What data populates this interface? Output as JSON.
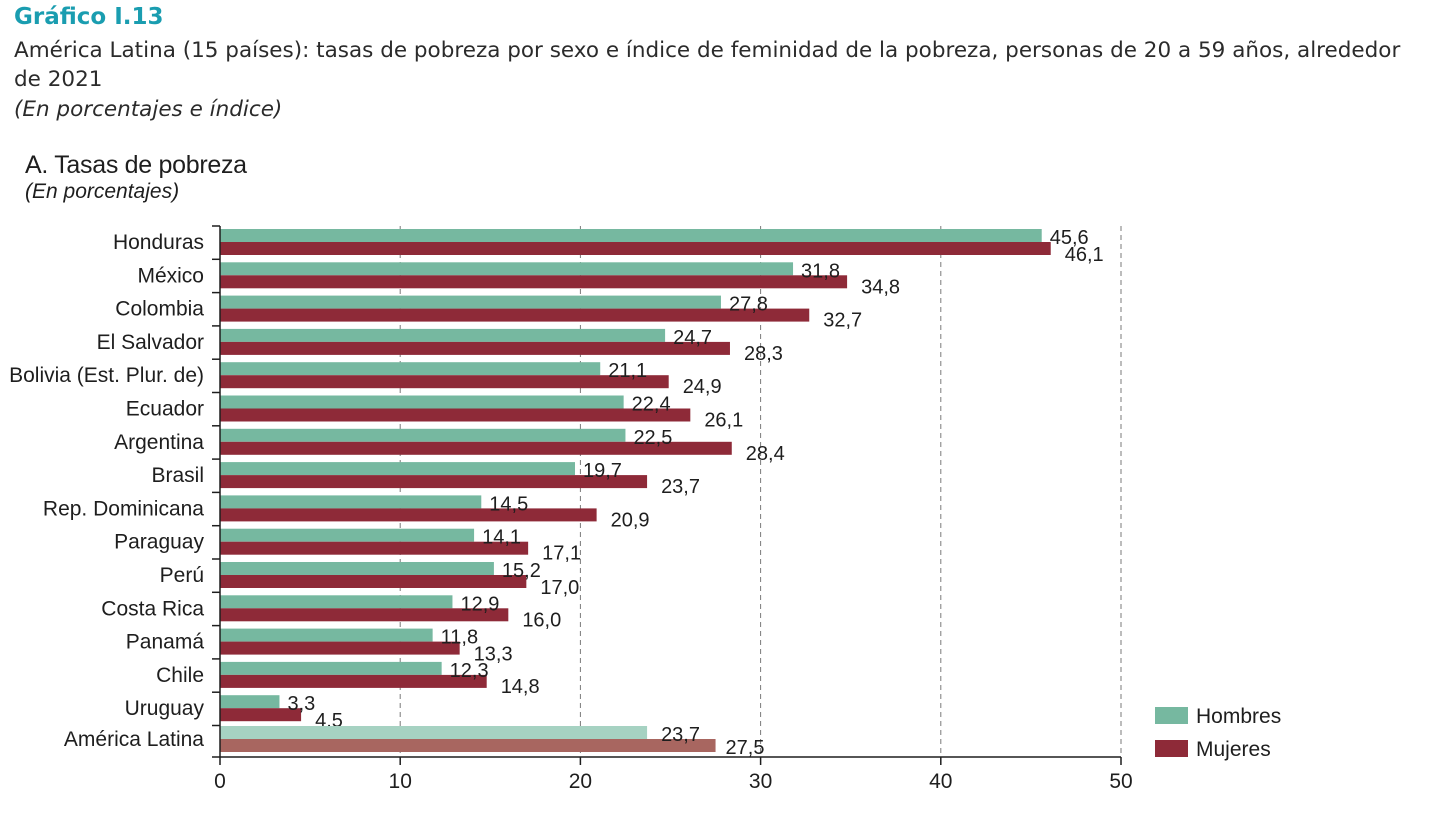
{
  "header": {
    "figure_label": "Gráfico I.13",
    "title": "América Latina (15 países): tasas de pobreza por sexo e índice de feminidad de la pobreza, personas de 20 a 59 años, alrededor de 2021",
    "units": "(En porcentajes e índice)"
  },
  "panel": {
    "title": "A. Tasas  de pobreza",
    "subtitle": "(En porcentajes)"
  },
  "colors": {
    "hombres": "#76b8a0",
    "mujeres": "#8e2a38",
    "hombres_total": "#a6d2c2",
    "mujeres_total": "#a86660",
    "axis": "#1e1e1e",
    "grid": "#7a7a7a"
  },
  "chart_data": {
    "type": "bar",
    "orientation": "horizontal",
    "categories": [
      "Honduras",
      "México",
      "Colombia",
      "El Salvador",
      "Bolivia  (Est. Plur. de)",
      "Ecuador",
      "Argentina",
      "Brasil",
      "Rep. Dominicana",
      "Paraguay",
      "Perú",
      "Costa Rica",
      "Panamá",
      "Chile",
      "Uruguay",
      "América Latina"
    ],
    "series": [
      {
        "name": "Hombres",
        "values": [
          45.6,
          31.8,
          27.8,
          24.7,
          21.1,
          22.4,
          22.5,
          19.7,
          14.5,
          14.1,
          15.2,
          12.9,
          11.8,
          12.3,
          3.3,
          23.7
        ],
        "labels": [
          "45,6",
          "31,8",
          "27,8",
          "24,7",
          "21,1",
          "22,4",
          "22,5",
          "19,7",
          "14,5",
          "14,1",
          "15,2",
          "12,9",
          "11,8",
          "12,3",
          "3,3",
          "23,7"
        ]
      },
      {
        "name": "Mujeres",
        "values": [
          46.1,
          34.8,
          32.7,
          28.3,
          24.9,
          26.1,
          28.4,
          23.7,
          20.9,
          17.1,
          17.0,
          16.0,
          13.3,
          14.8,
          4.5,
          27.5
        ],
        "labels": [
          "46,1",
          "34,8",
          "32,7",
          "28,3",
          "24,9",
          "26,1",
          "28,4",
          "23,7",
          "20,9",
          "17,1",
          "17,0",
          "16,0",
          "13,3",
          "14,8",
          "4,5",
          "27,5"
        ]
      }
    ],
    "xlim": [
      0,
      50
    ],
    "xticks": [
      "0",
      "10",
      "20",
      "30",
      "40",
      "50"
    ],
    "grid": "vertical dashed",
    "legend": "bottom-right"
  }
}
